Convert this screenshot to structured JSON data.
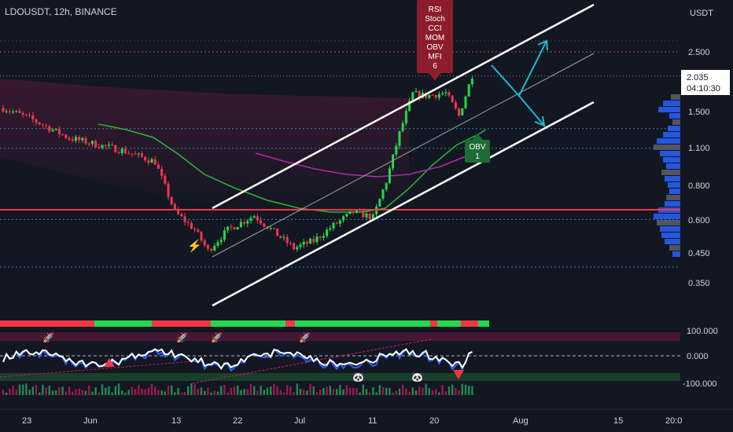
{
  "header": {
    "symbol_line": "LDOUSDT, 12h, BINANCE"
  },
  "price_axis": {
    "currency": "USDT",
    "ticks": [
      "2.500",
      "1.500",
      "1.100",
      "0.800",
      "0.600",
      "0.450",
      "0.350"
    ],
    "last_price": "2.035",
    "countdown": "04:10:30"
  },
  "osc_axis": {
    "ticks": [
      "100.000",
      "0.000",
      "-100.000"
    ]
  },
  "time_axis": {
    "ticks": [
      "23",
      "Jun",
      "13",
      "22",
      "Jul",
      "11",
      "20",
      "Aug",
      "15",
      "20:0"
    ]
  },
  "signals": {
    "sell_label": [
      "RSI",
      "Stoch",
      "CCI",
      "MOM",
      "OBV",
      "MFI",
      "6"
    ],
    "buy_label": [
      "OBV",
      "1"
    ]
  },
  "colors": {
    "background": "#131722",
    "up": "#26d84a",
    "down": "#f0364f",
    "support_line": "#f23645",
    "ma_fast": "#2db53a",
    "ma_slow": "#b02aa8",
    "channel": "#ffffff",
    "projection_arrow": "#1fb8c7",
    "osc_primary": "#ffffff",
    "osc_secondary": "#2962ff"
  },
  "chart_data": {
    "type": "candlestick",
    "symbol": "LDOUSDT",
    "interval": "12h",
    "exchange": "BINANCE",
    "y_scale": "log",
    "ylim": [
      0.3,
      3.2
    ],
    "time_start": "2022-05-18",
    "bar_hours": 12,
    "ohlc_checkpoints": [
      {
        "date": "2022-05-18",
        "close": 1.55
      },
      {
        "date": "2022-05-22",
        "close": 1.42
      },
      {
        "date": "2022-05-28",
        "close": 1.2
      },
      {
        "date": "2022-06-05",
        "close": 1.08
      },
      {
        "date": "2022-06-10",
        "close": 0.98
      },
      {
        "date": "2022-06-13",
        "close": 0.64
      },
      {
        "date": "2022-06-16",
        "close": 0.55
      },
      {
        "date": "2022-06-18",
        "close": 0.46
      },
      {
        "date": "2022-06-21",
        "close": 0.55
      },
      {
        "date": "2022-06-25",
        "close": 0.62
      },
      {
        "date": "2022-06-28",
        "close": 0.54
      },
      {
        "date": "2022-07-01",
        "close": 0.47
      },
      {
        "date": "2022-07-04",
        "close": 0.5
      },
      {
        "date": "2022-07-07",
        "close": 0.57
      },
      {
        "date": "2022-07-10",
        "close": 0.64
      },
      {
        "date": "2022-07-13",
        "close": 0.61
      },
      {
        "date": "2022-07-15",
        "close": 0.83
      },
      {
        "date": "2022-07-17",
        "close": 1.25
      },
      {
        "date": "2022-07-19",
        "close": 1.75
      },
      {
        "date": "2022-07-21",
        "close": 1.72
      },
      {
        "date": "2022-07-24",
        "close": 1.76
      },
      {
        "date": "2022-07-26",
        "close": 1.45
      },
      {
        "date": "2022-07-28",
        "close": 2.05
      }
    ],
    "horizontal_levels": [
      0.65
    ],
    "legend": []
  }
}
